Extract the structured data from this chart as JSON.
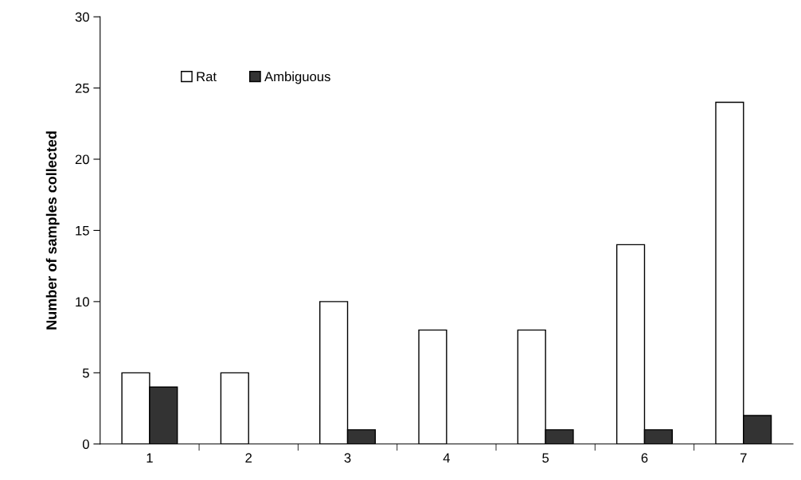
{
  "chart_data": {
    "type": "bar",
    "ylabel": "Number of samples collected",
    "categories": [
      "1",
      "2",
      "3",
      "4",
      "5",
      "6",
      "7"
    ],
    "series": [
      {
        "name": "Rat",
        "color": "#ffffff",
        "values": [
          5,
          5,
          10,
          8,
          8,
          14,
          24
        ]
      },
      {
        "name": "Ambiguous",
        "color": "#333333",
        "values": [
          4,
          null,
          1,
          null,
          1,
          1,
          2
        ]
      }
    ],
    "ylim": [
      0,
      30
    ],
    "yticks": [
      0,
      5,
      10,
      15,
      20,
      25,
      30
    ],
    "grid": false,
    "legend": "top left"
  }
}
